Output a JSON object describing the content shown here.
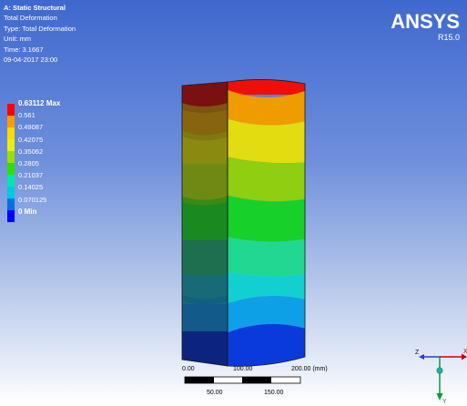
{
  "analysis": {
    "title": "A: Static Structural",
    "result": "Total Deformation",
    "type": "Type: Total Deformation",
    "unit": "Unit: mm",
    "time": "Time: 3.1667",
    "date": "09-04-2017 23:00"
  },
  "brand": {
    "name": "ANSYS",
    "version": "R15.0"
  },
  "legend": {
    "labels": [
      "0.63112 Max",
      "0.561",
      "0.49087",
      "0.42075",
      "0.35062",
      "0.2805",
      "0.21037",
      "0.14025",
      "0.070125",
      "0 Min"
    ],
    "colors": [
      "#ff0000",
      "#ff9a00",
      "#ffd800",
      "#e8f000",
      "#99e000",
      "#2ce000",
      "#00e6b0",
      "#00c8e0",
      "#006fe6",
      "#0000ff"
    ]
  },
  "scale_bar": {
    "top_labels": [
      "0.00",
      "100.00",
      "200.00 (mm)"
    ],
    "bottom_labels": [
      "50.00",
      "150.00"
    ]
  },
  "triad": {
    "axes": [
      "X",
      "Y",
      "Z"
    ]
  }
}
